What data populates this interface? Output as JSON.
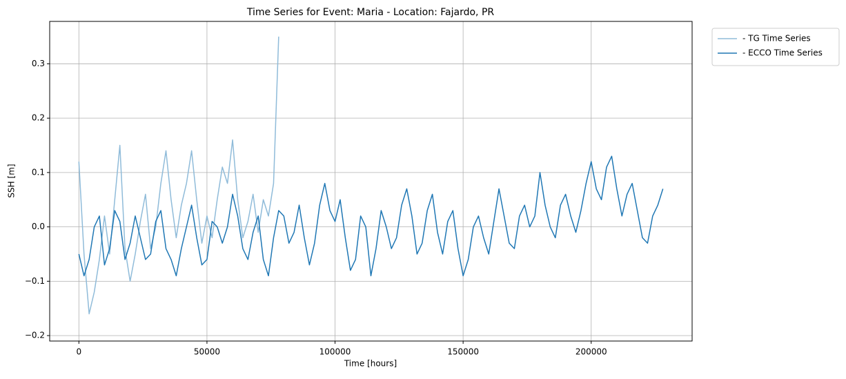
{
  "chart_data": {
    "type": "line",
    "title": "Time Series for Event: Maria - Location: Fajardo, PR",
    "x_label": "Time [hours]",
    "y_label": "SSH [m]",
    "xlim": [
      -11400,
      239400
    ],
    "ylim": [
      -0.21,
      0.378
    ],
    "xticks": [
      0,
      50000,
      100000,
      150000,
      200000
    ],
    "yticks": [
      {
        "value": -0.2,
        "label": "−0.2"
      },
      {
        "value": -0.1,
        "label": "−0.1"
      },
      {
        "value": 0,
        "label": "0.0"
      },
      0.1,
      0.2,
      0.3
    ],
    "grid": true,
    "legend": "outside-upper-right",
    "series": [
      {
        "name": "- TG Time Series",
        "color": "#8fbbd9",
        "x": [
          0,
          2000,
          4000,
          6000,
          8000,
          10000,
          12000,
          14000,
          16000,
          18000,
          20000,
          22000,
          24000,
          26000,
          28000,
          30000,
          32000,
          34000,
          36000,
          38000,
          40000,
          42000,
          44000,
          46000,
          48000,
          50000,
          52000,
          54000,
          56000,
          58000,
          60000,
          62000,
          64000,
          66000,
          68000,
          70000,
          72000,
          74000,
          76000,
          78000
        ],
        "values": [
          0.12,
          -0.05,
          -0.16,
          -0.12,
          -0.06,
          0.02,
          -0.05,
          0.05,
          0.15,
          -0.04,
          -0.1,
          -0.05,
          0.01,
          0.06,
          -0.04,
          0.0,
          0.08,
          0.14,
          0.05,
          -0.02,
          0.04,
          0.08,
          0.14,
          0.05,
          -0.03,
          0.02,
          -0.02,
          0.05,
          0.11,
          0.08,
          0.16,
          0.05,
          -0.02,
          0.01,
          0.06,
          -0.01,
          0.05,
          0.02,
          0.08,
          0.35
        ]
      },
      {
        "name": "- ECCO Time Series",
        "color": "#1f77b4",
        "x": [
          0,
          2000,
          4000,
          6000,
          8000,
          10000,
          12000,
          14000,
          16000,
          18000,
          20000,
          22000,
          24000,
          26000,
          28000,
          30000,
          32000,
          34000,
          36000,
          38000,
          40000,
          42000,
          44000,
          46000,
          48000,
          50000,
          52000,
          54000,
          56000,
          58000,
          60000,
          62000,
          64000,
          66000,
          68000,
          70000,
          72000,
          74000,
          76000,
          78000,
          80000,
          82000,
          84000,
          86000,
          88000,
          90000,
          92000,
          94000,
          96000,
          98000,
          100000,
          102000,
          104000,
          106000,
          108000,
          110000,
          112000,
          114000,
          116000,
          118000,
          120000,
          122000,
          124000,
          126000,
          128000,
          130000,
          132000,
          134000,
          136000,
          138000,
          140000,
          142000,
          144000,
          146000,
          148000,
          150000,
          152000,
          154000,
          156000,
          158000,
          160000,
          162000,
          164000,
          166000,
          168000,
          170000,
          172000,
          174000,
          176000,
          178000,
          180000,
          182000,
          184000,
          186000,
          188000,
          190000,
          192000,
          194000,
          196000,
          198000,
          200000,
          202000,
          204000,
          206000,
          208000,
          210000,
          212000,
          214000,
          216000,
          218000,
          220000,
          222000,
          224000,
          226000,
          228000
        ],
        "values": [
          -0.05,
          -0.09,
          -0.06,
          0.0,
          0.02,
          -0.07,
          -0.04,
          0.03,
          0.01,
          -0.06,
          -0.03,
          0.02,
          -0.02,
          -0.06,
          -0.05,
          0.01,
          0.03,
          -0.04,
          -0.06,
          -0.09,
          -0.04,
          0.0,
          0.04,
          -0.02,
          -0.07,
          -0.06,
          0.01,
          0.0,
          -0.03,
          0.0,
          0.06,
          0.02,
          -0.04,
          -0.06,
          -0.01,
          0.02,
          -0.06,
          -0.09,
          -0.02,
          0.03,
          0.02,
          -0.03,
          -0.01,
          0.04,
          -0.02,
          -0.07,
          -0.03,
          0.04,
          0.08,
          0.03,
          0.01,
          0.05,
          -0.02,
          -0.08,
          -0.06,
          0.02,
          0.0,
          -0.09,
          -0.04,
          0.03,
          0.0,
          -0.04,
          -0.02,
          0.04,
          0.07,
          0.02,
          -0.05,
          -0.03,
          0.03,
          0.06,
          -0.01,
          -0.05,
          0.01,
          0.03,
          -0.04,
          -0.09,
          -0.06,
          0.0,
          0.02,
          -0.02,
          -0.05,
          0.01,
          0.07,
          0.02,
          -0.03,
          -0.04,
          0.02,
          0.04,
          0.0,
          0.02,
          0.1,
          0.04,
          0.0,
          -0.02,
          0.04,
          0.06,
          0.02,
          -0.01,
          0.03,
          0.08,
          0.12,
          0.07,
          0.05,
          0.11,
          0.13,
          0.07,
          0.02,
          0.06,
          0.08,
          0.03,
          -0.02,
          -0.03,
          0.02,
          0.04,
          0.07
        ]
      }
    ]
  }
}
